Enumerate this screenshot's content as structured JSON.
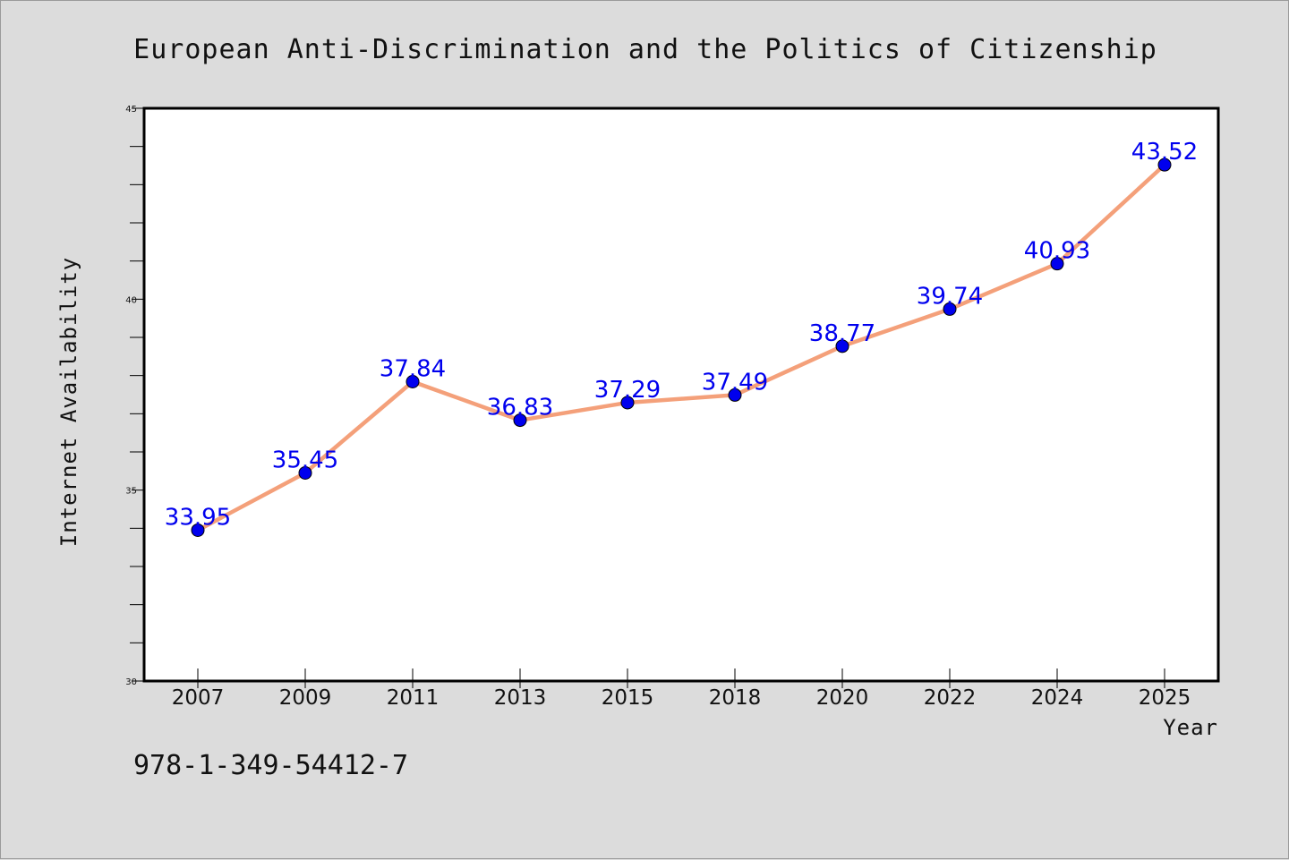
{
  "footer": {
    "isbn": "978-1-349-54412-7"
  },
  "colors": {
    "line": "#f4a07a",
    "marker": "#0000ee",
    "label": "#0000ee",
    "background": "#dcdcdc",
    "plot_bg": "#ffffff"
  },
  "chart_data": {
    "type": "line",
    "title": "European Anti-Discrimination and the Politics of Citizenship",
    "xlabel": "Year",
    "ylabel": "Internet Availability",
    "categories": [
      "2007",
      "2009",
      "2011",
      "2013",
      "2015",
      "2018",
      "2020",
      "2022",
      "2024",
      "2025"
    ],
    "series": [
      {
        "values": [
          33.95,
          35.45,
          37.84,
          36.83,
          37.29,
          37.49,
          38.77,
          39.74,
          40.93,
          43.52
        ]
      }
    ],
    "data_labels": [
      "33.95",
      "35.45",
      "37.84",
      "36.83",
      "37.29",
      "37.49",
      "38.77",
      "39.74",
      "40.93",
      "43.52"
    ],
    "ylim": [
      30,
      45
    ],
    "y_ticks": [
      "30",
      "35",
      "40",
      "45"
    ],
    "y_minor_step": 1,
    "grid": false,
    "legend": "none"
  }
}
